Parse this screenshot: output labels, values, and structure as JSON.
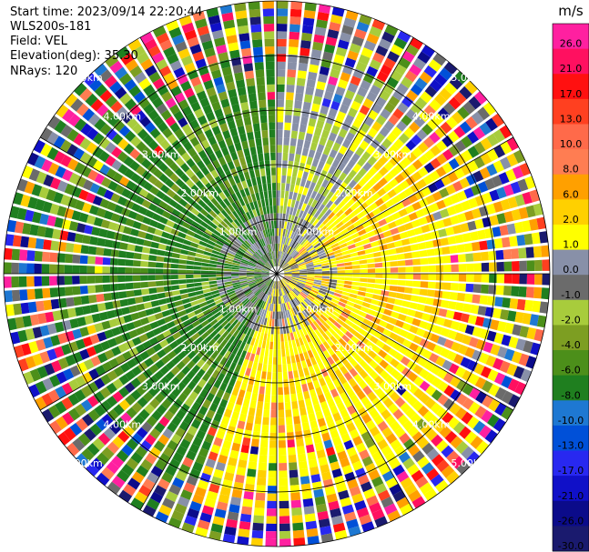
{
  "header": {
    "start_time": "Start time: 2023/09/14 22:20:44",
    "instrument": "WLS200s-181",
    "field": "Field: VEL",
    "elevation": "Elevation(deg): 35.30",
    "nrays": "NRays: 120"
  },
  "chart_data": {
    "type": "heatmap",
    "projection": "polar-ppi",
    "field": "VEL",
    "units": "m/s",
    "n_rays": 120,
    "max_range_km": 5.0,
    "range_rings_km": [
      1,
      2,
      3,
      4,
      5
    ],
    "range_ring_labels": [
      "1.00km",
      "2.00km",
      "3.00km",
      "4.00km",
      "5.00km"
    ],
    "azimuth_lines_deg": [
      0,
      30,
      60,
      90,
      120,
      150,
      180,
      210,
      240,
      270,
      300,
      330
    ],
    "colorbar": {
      "title": "m/s",
      "ticks": [
        "26.0",
        "21.0",
        "17.0",
        "13.0",
        "10.0",
        "8.0",
        "6.0",
        "2.0",
        "1.0",
        "0.0",
        "-1.0",
        "-2.0",
        "-4.0",
        "-6.0",
        "-8.0",
        "-10.0",
        "-13.0",
        "-17.0",
        "-21.0",
        "-26.0",
        "-30.0"
      ],
      "colors": [
        "#1a1a6e",
        "#0b0b8a",
        "#1010c8",
        "#2828f0",
        "#0050d8",
        "#1e78d2",
        "#1f7f1f",
        "#4c8f1a",
        "#7d9e22",
        "#a8cc3c",
        "#6b6b6b",
        "#8890a8",
        "#ffff00",
        "#ffd000",
        "#ffa000",
        "#ff7d52",
        "#ff6a4a",
        "#ff4020",
        "#ff1010",
        "#ff1060",
        "#ff20a0"
      ]
    }
  }
}
